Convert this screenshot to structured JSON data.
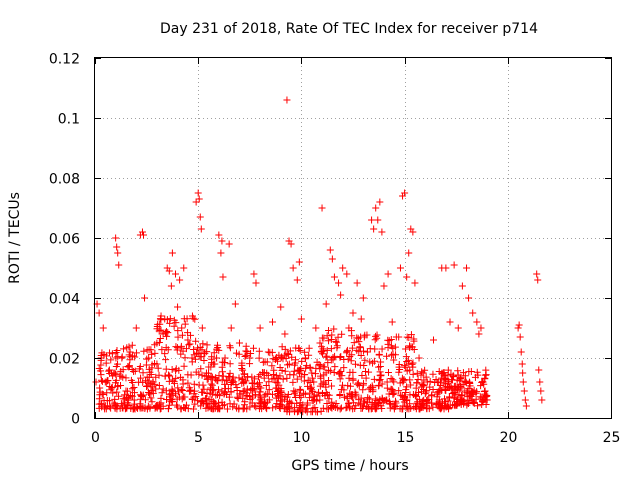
{
  "chart_data": {
    "type": "scatter",
    "title": "Day 231 of 2018, Rate Of TEC Index for receiver p714",
    "xlabel": "GPS time / hours",
    "ylabel": "ROTI / TECUs",
    "xlim": [
      0,
      25
    ],
    "ylim": [
      0,
      0.12
    ],
    "xticks": [
      0,
      5,
      10,
      15,
      20,
      25
    ],
    "xtick_labels": [
      "0",
      "5",
      "10",
      "15",
      "20",
      "25"
    ],
    "yticks": [
      0,
      0.02,
      0.04,
      0.06,
      0.08,
      0.1,
      0.12
    ],
    "ytick_labels": [
      "0",
      "0.02",
      "0.04",
      "0.06",
      "0.08",
      "0.1",
      "0.12"
    ],
    "grid": true,
    "marker": "+",
    "color": "#ff0000",
    "series": [
      {
        "name": "ROTI",
        "points": [
          [
            0.05,
            0.012
          ],
          [
            0.1,
            0.038
          ],
          [
            0.2,
            0.035
          ],
          [
            0.3,
            0.02
          ],
          [
            0.35,
            0.008
          ],
          [
            0.4,
            0.03
          ],
          [
            0.5,
            0.012
          ],
          [
            0.6,
            0.004
          ],
          [
            0.7,
            0.016
          ],
          [
            0.8,
            0.01
          ],
          [
            1.0,
            0.06
          ],
          [
            1.05,
            0.057
          ],
          [
            1.1,
            0.055
          ],
          [
            1.15,
            0.051
          ],
          [
            1.2,
            0.014
          ],
          [
            1.3,
            0.02
          ],
          [
            1.5,
            0.009
          ],
          [
            1.7,
            0.022
          ],
          [
            1.9,
            0.006
          ],
          [
            2.0,
            0.03
          ],
          [
            2.2,
            0.061
          ],
          [
            2.3,
            0.062
          ],
          [
            2.35,
            0.061
          ],
          [
            2.4,
            0.04
          ],
          [
            2.6,
            0.02
          ],
          [
            2.8,
            0.012
          ],
          [
            3.0,
            0.018
          ],
          [
            3.2,
            0.034
          ],
          [
            3.3,
            0.028
          ],
          [
            3.5,
            0.05
          ],
          [
            3.6,
            0.049
          ],
          [
            3.7,
            0.044
          ],
          [
            3.75,
            0.055
          ],
          [
            3.9,
            0.048
          ],
          [
            4.0,
            0.037
          ],
          [
            4.1,
            0.046
          ],
          [
            4.2,
            0.03
          ],
          [
            4.3,
            0.05
          ],
          [
            4.5,
            0.026
          ],
          [
            4.7,
            0.02
          ],
          [
            4.9,
            0.072
          ],
          [
            5.0,
            0.075
          ],
          [
            5.05,
            0.073
          ],
          [
            5.1,
            0.067
          ],
          [
            5.15,
            0.063
          ],
          [
            5.2,
            0.03
          ],
          [
            5.4,
            0.015
          ],
          [
            5.6,
            0.01
          ],
          [
            5.8,
            0.018
          ],
          [
            6.0,
            0.061
          ],
          [
            6.1,
            0.055
          ],
          [
            6.15,
            0.059
          ],
          [
            6.2,
            0.047
          ],
          [
            6.3,
            0.02
          ],
          [
            6.5,
            0.058
          ],
          [
            6.6,
            0.03
          ],
          [
            6.8,
            0.038
          ],
          [
            7.0,
            0.025
          ],
          [
            7.2,
            0.012
          ],
          [
            7.5,
            0.02
          ],
          [
            7.7,
            0.048
          ],
          [
            7.8,
            0.045
          ],
          [
            8.0,
            0.03
          ],
          [
            8.2,
            0.015
          ],
          [
            8.4,
            0.022
          ],
          [
            8.6,
            0.032
          ],
          [
            8.8,
            0.01
          ],
          [
            9.0,
            0.037
          ],
          [
            9.2,
            0.028
          ],
          [
            9.3,
            0.106
          ],
          [
            9.4,
            0.059
          ],
          [
            9.5,
            0.058
          ],
          [
            9.6,
            0.05
          ],
          [
            9.8,
            0.046
          ],
          [
            9.9,
            0.052
          ],
          [
            10.0,
            0.033
          ],
          [
            10.2,
            0.02
          ],
          [
            10.5,
            0.015
          ],
          [
            10.7,
            0.03
          ],
          [
            10.9,
            0.025
          ],
          [
            11.0,
            0.07
          ],
          [
            11.2,
            0.038
          ],
          [
            11.4,
            0.056
          ],
          [
            11.5,
            0.053
          ],
          [
            11.6,
            0.047
          ],
          [
            11.8,
            0.045
          ],
          [
            11.9,
            0.041
          ],
          [
            12.0,
            0.05
          ],
          [
            12.2,
            0.048
          ],
          [
            12.3,
            0.03
          ],
          [
            12.5,
            0.035
          ],
          [
            12.7,
            0.045
          ],
          [
            12.9,
            0.033
          ],
          [
            13.0,
            0.04
          ],
          [
            13.2,
            0.022
          ],
          [
            13.4,
            0.066
          ],
          [
            13.5,
            0.063
          ],
          [
            13.6,
            0.07
          ],
          [
            13.7,
            0.066
          ],
          [
            13.8,
            0.072
          ],
          [
            13.9,
            0.062
          ],
          [
            14.0,
            0.044
          ],
          [
            14.2,
            0.048
          ],
          [
            14.4,
            0.032
          ],
          [
            14.6,
            0.027
          ],
          [
            14.8,
            0.05
          ],
          [
            14.9,
            0.074
          ],
          [
            15.0,
            0.075
          ],
          [
            15.1,
            0.047
          ],
          [
            15.2,
            0.055
          ],
          [
            15.3,
            0.063
          ],
          [
            15.4,
            0.062
          ],
          [
            15.5,
            0.045
          ],
          [
            15.7,
            0.02
          ],
          [
            15.9,
            0.015
          ],
          [
            16.1,
            0.012
          ],
          [
            16.4,
            0.026
          ],
          [
            16.6,
            0.008
          ],
          [
            16.8,
            0.05
          ],
          [
            17.0,
            0.05
          ],
          [
            17.2,
            0.032
          ],
          [
            17.4,
            0.051
          ],
          [
            17.6,
            0.03
          ],
          [
            17.8,
            0.044
          ],
          [
            18.0,
            0.05
          ],
          [
            18.1,
            0.04
          ],
          [
            18.3,
            0.035
          ],
          [
            18.5,
            0.032
          ],
          [
            18.6,
            0.028
          ],
          [
            18.7,
            0.03
          ],
          [
            18.8,
            0.012
          ],
          [
            18.9,
            0.009
          ],
          [
            19.0,
            0.006
          ],
          [
            20.5,
            0.03
          ],
          [
            20.55,
            0.031
          ],
          [
            20.6,
            0.027
          ],
          [
            20.65,
            0.022
          ],
          [
            20.7,
            0.018
          ],
          [
            20.72,
            0.015
          ],
          [
            20.75,
            0.012
          ],
          [
            20.8,
            0.009
          ],
          [
            20.85,
            0.006
          ],
          [
            20.9,
            0.004
          ],
          [
            21.4,
            0.048
          ],
          [
            21.45,
            0.046
          ],
          [
            21.5,
            0.016
          ],
          [
            21.55,
            0.012
          ],
          [
            21.6,
            0.009
          ],
          [
            21.65,
            0.006
          ]
        ],
        "dense_bands": [
          {
            "x": [
              0.2,
              1.0
            ],
            "y": [
              0.003,
              0.022
            ]
          },
          {
            "x": [
              1.0,
              3.0
            ],
            "y": [
              0.003,
              0.025
            ]
          },
          {
            "x": [
              3.0,
              5.0
            ],
            "y": [
              0.003,
              0.034
            ]
          },
          {
            "x": [
              5.0,
              7.0
            ],
            "y": [
              0.003,
              0.025
            ]
          },
          {
            "x": [
              7.0,
              9.0
            ],
            "y": [
              0.003,
              0.024
            ]
          },
          {
            "x": [
              9.0,
              11.0
            ],
            "y": [
              0.002,
              0.024
            ]
          },
          {
            "x": [
              11.0,
              13.0
            ],
            "y": [
              0.003,
              0.03
            ]
          },
          {
            "x": [
              13.0,
              15.5
            ],
            "y": [
              0.003,
              0.028
            ]
          },
          {
            "x": [
              15.5,
              17.3
            ],
            "y": [
              0.003,
              0.016
            ]
          },
          {
            "x": [
              17.3,
              19.0
            ],
            "y": [
              0.004,
              0.016
            ]
          }
        ]
      }
    ]
  }
}
